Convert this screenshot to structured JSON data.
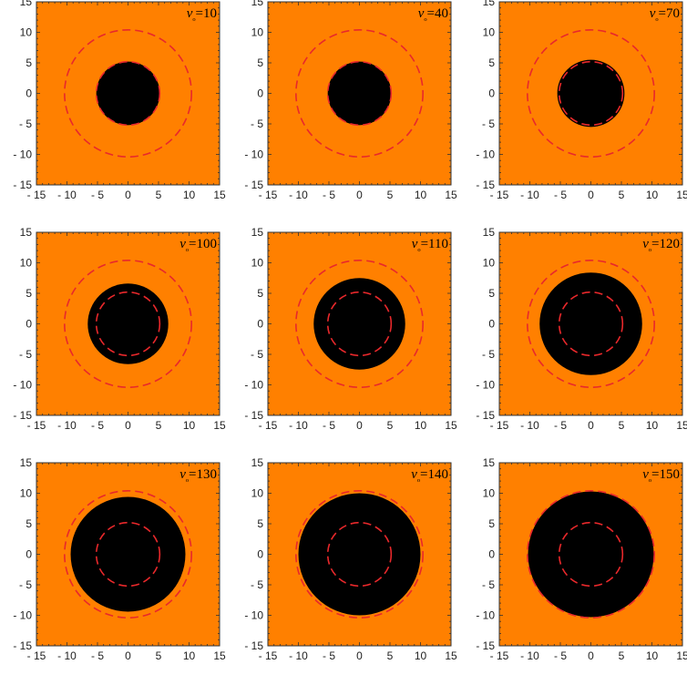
{
  "chart_data": {
    "type": "shadow-grid",
    "layout": {
      "rows": 3,
      "cols": 3
    },
    "xlim": [
      -15,
      15
    ],
    "ylim": [
      -15,
      15
    ],
    "x_ticks": [
      -15,
      -10,
      -5,
      0,
      5,
      10,
      15
    ],
    "y_ticks": [
      15,
      10,
      5,
      0,
      -5,
      -10,
      -15
    ],
    "x_tick_labels": [
      "- 15",
      "- 10",
      "- 5",
      "0",
      "5",
      "10",
      "15"
    ],
    "y_tick_labels": [
      "15",
      "10",
      "5",
      "0",
      "- 5",
      "- 10",
      "- 15"
    ],
    "colors": {
      "background": "#FF8000",
      "shadow": "#000000",
      "dashed": "#E8282B",
      "frame": "#333333"
    },
    "reference_circle_radii": [
      5.2,
      10.4
    ],
    "panels": [
      {
        "label": "vₒ=10",
        "shadow_radius": 5.2
      },
      {
        "label": "vₒ=40",
        "shadow_radius": 5.2
      },
      {
        "label": "vₒ=70",
        "shadow_radius": 5.5
      },
      {
        "label": "vₒ=100",
        "shadow_radius": 6.6
      },
      {
        "label": "vₒ=110",
        "shadow_radius": 7.5
      },
      {
        "label": "vₒ=120",
        "shadow_radius": 8.4
      },
      {
        "label": "vₒ=130",
        "shadow_radius": 9.4
      },
      {
        "label": "vₒ=140",
        "shadow_radius": 10.0
      },
      {
        "label": "vₒ=150",
        "shadow_radius": 10.3
      }
    ]
  }
}
